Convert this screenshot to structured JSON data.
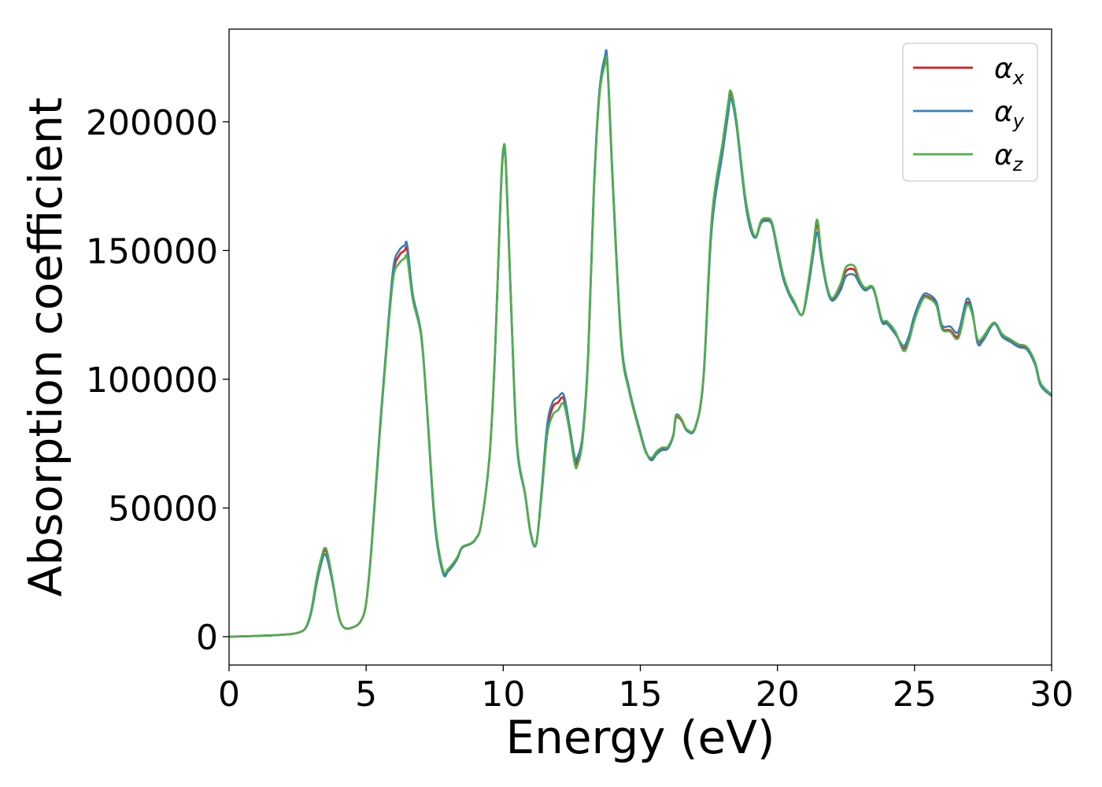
{
  "chart_data": {
    "type": "line",
    "xlabel": "Energy (eV)",
    "ylabel": "Absorption coefficient",
    "xlim": [
      0,
      30
    ],
    "ylim": [
      -11000,
      236000
    ],
    "xticks": [
      0,
      5,
      10,
      15,
      20,
      25,
      30
    ],
    "yticks": [
      0,
      50000,
      100000,
      150000,
      200000
    ],
    "grid": false,
    "legend_position": "top-right",
    "legend": [
      {
        "symbol": "α",
        "sub": "x"
      },
      {
        "symbol": "α",
        "sub": "y"
      },
      {
        "symbol": "α",
        "sub": "z"
      }
    ],
    "colors": {
      "x": "#e41a1c",
      "y": "#377eb8",
      "z": "#4daf4a"
    },
    "series": [
      {
        "name": "αx",
        "x": [
          0,
          1,
          2,
          2.5,
          2.8,
          3.0,
          3.2,
          3.4,
          3.5,
          3.6,
          3.8,
          4.0,
          4.2,
          4.5,
          4.8,
          5.0,
          5.2,
          5.5,
          5.8,
          6.0,
          6.2,
          6.4,
          6.5,
          6.7,
          7.0,
          7.2,
          7.5,
          7.8,
          8.0,
          8.3,
          8.5,
          8.8,
          9.0,
          9.2,
          9.5,
          9.7,
          9.9,
          10.0,
          10.1,
          10.3,
          10.5,
          10.8,
          11.0,
          11.2,
          11.4,
          11.6,
          11.8,
          12.0,
          12.2,
          12.4,
          12.6,
          12.7,
          12.9,
          13.1,
          13.3,
          13.5,
          13.7,
          13.8,
          14.0,
          14.3,
          14.6,
          15.0,
          15.2,
          15.4,
          15.6,
          15.8,
          16.0,
          16.2,
          16.3,
          16.5,
          16.7,
          17.0,
          17.3,
          17.6,
          18.0,
          18.2,
          18.3,
          18.5,
          18.8,
          19.0,
          19.2,
          19.4,
          19.6,
          19.8,
          20.0,
          20.2,
          20.4,
          20.6,
          20.9,
          21.1,
          21.3,
          21.45,
          21.6,
          21.8,
          22.0,
          22.3,
          22.5,
          22.8,
          23.0,
          23.2,
          23.5,
          23.8,
          24.0,
          24.3,
          24.6,
          24.8,
          25.0,
          25.3,
          25.5,
          25.8,
          26.0,
          26.3,
          26.6,
          26.9,
          27.1,
          27.3,
          27.5,
          27.9,
          28.2,
          28.5,
          28.8,
          29.1,
          29.4,
          29.6,
          30.0
        ],
        "values": [
          0,
          300,
          800,
          1500,
          3500,
          10000,
          22000,
          31000,
          33500,
          31000,
          20000,
          8000,
          3500,
          3600,
          6000,
          13000,
          35000,
          80000,
          120000,
          142000,
          148000,
          150000,
          150000,
          132000,
          118000,
          92000,
          45000,
          25500,
          26000,
          30000,
          34500,
          36000,
          38000,
          44000,
          70000,
          110000,
          170000,
          189000,
          183000,
          125000,
          75000,
          55000,
          40000,
          36000,
          56000,
          80000,
          89000,
          91000,
          92500,
          82000,
          69000,
          68000,
          78000,
          110000,
          172000,
          210000,
          223000,
          222000,
          175000,
          115000,
          95000,
          79000,
          72000,
          69000,
          71500,
          73000,
          73500,
          78000,
          85000,
          84000,
          80000,
          81000,
          100000,
          160000,
          190000,
          205000,
          211000,
          200000,
          172000,
          160000,
          155000,
          161000,
          162000,
          160500,
          150000,
          140000,
          134000,
          130000,
          125000,
          135000,
          150000,
          160000,
          148000,
          136000,
          131000,
          136000,
          142000,
          142500,
          138000,
          135000,
          135000,
          123000,
          122000,
          118000,
          112000,
          116000,
          124000,
          131500,
          132000,
          129000,
          120000,
          119000,
          117000,
          129500,
          126000,
          115000,
          116000,
          122000,
          117000,
          115000,
          113000,
          112000,
          106000,
          98000,
          94000
        ]
      },
      {
        "name": "αy",
        "x": [
          0,
          1,
          2,
          2.5,
          2.8,
          3.0,
          3.2,
          3.4,
          3.5,
          3.6,
          3.8,
          4.0,
          4.2,
          4.5,
          4.8,
          5.0,
          5.2,
          5.5,
          5.8,
          6.0,
          6.2,
          6.4,
          6.5,
          6.7,
          7.0,
          7.2,
          7.5,
          7.8,
          8.0,
          8.3,
          8.5,
          8.8,
          9.0,
          9.2,
          9.5,
          9.7,
          9.9,
          10.0,
          10.1,
          10.3,
          10.5,
          10.8,
          11.0,
          11.2,
          11.4,
          11.6,
          11.8,
          12.0,
          12.2,
          12.4,
          12.6,
          12.7,
          12.9,
          13.1,
          13.3,
          13.5,
          13.7,
          13.8,
          14.0,
          14.3,
          14.6,
          15.0,
          15.2,
          15.4,
          15.6,
          15.8,
          16.0,
          16.2,
          16.3,
          16.5,
          16.7,
          17.0,
          17.3,
          17.6,
          18.0,
          18.2,
          18.3,
          18.5,
          18.8,
          19.0,
          19.2,
          19.4,
          19.6,
          19.8,
          20.0,
          20.2,
          20.4,
          20.6,
          20.9,
          21.1,
          21.3,
          21.45,
          21.6,
          21.8,
          22.0,
          22.3,
          22.5,
          22.8,
          23.0,
          23.2,
          23.5,
          23.8,
          24.0,
          24.3,
          24.6,
          24.8,
          25.0,
          25.3,
          25.5,
          25.8,
          26.0,
          26.3,
          26.6,
          26.9,
          27.1,
          27.3,
          27.5,
          27.9,
          28.2,
          28.5,
          28.8,
          29.1,
          29.4,
          29.6,
          30.0
        ],
        "values": [
          0,
          300,
          800,
          1500,
          3400,
          9500,
          21000,
          30000,
          32000,
          29500,
          19500,
          7800,
          3500,
          3600,
          6000,
          13200,
          36000,
          81000,
          121000,
          144000,
          150000,
          152000,
          152000,
          133000,
          118000,
          91000,
          44000,
          24800,
          25500,
          29800,
          34500,
          36000,
          38000,
          44000,
          70000,
          110000,
          169000,
          188000,
          182000,
          124000,
          74000,
          55000,
          40000,
          36000,
          57000,
          82000,
          91000,
          93000,
          94000,
          83000,
          70000,
          69500,
          79000,
          111000,
          173000,
          211000,
          225000,
          223000,
          176000,
          116000,
          96000,
          79500,
          72000,
          68500,
          71000,
          72500,
          73000,
          78000,
          86000,
          84500,
          80000,
          81000,
          100000,
          158000,
          188000,
          203000,
          209000,
          199000,
          171000,
          159000,
          155000,
          160500,
          161500,
          160000,
          149500,
          139500,
          133500,
          129500,
          125000,
          134000,
          148000,
          157000,
          147000,
          135500,
          130500,
          134500,
          140000,
          140500,
          137000,
          134500,
          135000,
          122500,
          121500,
          117500,
          113000,
          117000,
          125000,
          132500,
          133000,
          130000,
          121000,
          120500,
          118500,
          131000,
          127000,
          114000,
          115000,
          121500,
          116500,
          114500,
          112500,
          111500,
          105500,
          97500,
          93500
        ]
      },
      {
        "name": "αz",
        "x": [
          0,
          1,
          2,
          2.5,
          2.8,
          3.0,
          3.2,
          3.4,
          3.5,
          3.6,
          3.8,
          4.0,
          4.2,
          4.5,
          4.8,
          5.0,
          5.2,
          5.5,
          5.8,
          6.0,
          6.2,
          6.4,
          6.5,
          6.7,
          7.0,
          7.2,
          7.5,
          7.8,
          8.0,
          8.3,
          8.5,
          8.8,
          9.0,
          9.2,
          9.5,
          9.7,
          9.9,
          10.0,
          10.1,
          10.3,
          10.5,
          10.8,
          11.0,
          11.2,
          11.4,
          11.6,
          11.8,
          12.0,
          12.2,
          12.4,
          12.6,
          12.7,
          12.9,
          13.1,
          13.3,
          13.5,
          13.7,
          13.8,
          14.0,
          14.3,
          14.6,
          15.0,
          15.2,
          15.4,
          15.6,
          15.8,
          16.0,
          16.2,
          16.3,
          16.5,
          16.7,
          17.0,
          17.3,
          17.6,
          18.0,
          18.2,
          18.3,
          18.5,
          18.8,
          19.0,
          19.2,
          19.4,
          19.6,
          19.8,
          20.0,
          20.2,
          20.4,
          20.6,
          20.9,
          21.1,
          21.3,
          21.45,
          21.6,
          21.8,
          22.0,
          22.3,
          22.5,
          22.8,
          23.0,
          23.2,
          23.5,
          23.8,
          24.0,
          24.3,
          24.6,
          24.8,
          25.0,
          25.3,
          25.5,
          25.8,
          26.0,
          26.3,
          26.6,
          26.9,
          27.1,
          27.3,
          27.5,
          27.9,
          28.2,
          28.5,
          28.8,
          29.1,
          29.4,
          29.6,
          30.0
        ],
        "values": [
          0,
          300,
          800,
          1500,
          3600,
          10500,
          23000,
          32000,
          34500,
          32000,
          20500,
          8200,
          3500,
          3600,
          6000,
          13000,
          35000,
          79000,
          119000,
          140000,
          145000,
          147000,
          147000,
          131000,
          117000,
          92000,
          46000,
          26000,
          26500,
          30500,
          34800,
          36200,
          38200,
          44200,
          70500,
          110500,
          170500,
          189500,
          183500,
          125500,
          75500,
          55500,
          40500,
          36000,
          55000,
          78000,
          86000,
          88000,
          90500,
          81000,
          67500,
          66500,
          77000,
          109000,
          171000,
          209000,
          222000,
          221000,
          174000,
          114000,
          95000,
          78500,
          71500,
          69500,
          72000,
          73500,
          73800,
          78500,
          85500,
          84500,
          80500,
          81500,
          101000,
          162000,
          192000,
          207000,
          212000,
          201000,
          173000,
          161000,
          155500,
          161500,
          162500,
          161000,
          151000,
          141000,
          134500,
          130500,
          125000,
          136000,
          151000,
          162000,
          149000,
          136500,
          131500,
          137000,
          143500,
          144000,
          138500,
          135500,
          135500,
          123500,
          122500,
          118500,
          111000,
          115000,
          123000,
          131000,
          131500,
          128500,
          119500,
          118500,
          116000,
          128500,
          125500,
          115500,
          116500,
          122000,
          117500,
          115500,
          113500,
          112500,
          106500,
          98500,
          94000
        ]
      }
    ]
  }
}
